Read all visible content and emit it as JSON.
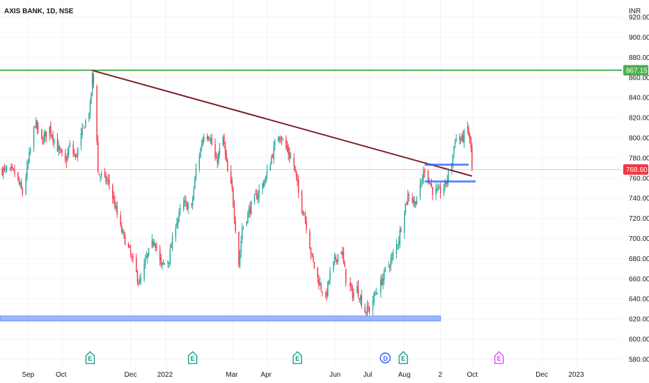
{
  "header": {
    "ticker": "AXIS BANK, 1D, NSE",
    "currency": "INR"
  },
  "price_tags": {
    "resistance": {
      "value": "867.15",
      "color": "#4caf50"
    },
    "last": {
      "value": "768.60",
      "color": "#f23645"
    }
  },
  "colors": {
    "up": "#26a69a",
    "down": "#f23645",
    "trendline": "#7b1d24",
    "support": "#2962ff",
    "grid": "#f0f3fa"
  },
  "events": [
    {
      "label": "E",
      "kind": "earnings",
      "date": "2021-10-26",
      "color": "#089981"
    },
    {
      "label": "E",
      "kind": "earnings",
      "date": "2022-01-25",
      "color": "#089981"
    },
    {
      "label": "E",
      "kind": "earnings",
      "date": "2022-04-28",
      "color": "#089981"
    },
    {
      "label": "D",
      "kind": "dividend",
      "date": "2022-07-15",
      "color": "#2962ff"
    },
    {
      "label": "E",
      "kind": "earnings",
      "date": "2022-07-31",
      "color": "#089981"
    },
    {
      "label": "E",
      "kind": "earnings",
      "date": "2022-10-24",
      "color": "#e040fb"
    }
  ],
  "chart_data": {
    "type": "candlestick",
    "title": "AXIS BANK, 1D, NSE",
    "y_axis": {
      "label": "INR",
      "ticks": [
        580,
        600,
        620,
        640,
        660,
        680,
        700,
        720,
        740,
        760,
        780,
        800,
        820,
        840,
        860,
        880,
        900,
        920
      ],
      "ylim": [
        573,
        937
      ]
    },
    "x_axis": {
      "ticks": [
        {
          "label": "Sep",
          "date": "2021-09-01"
        },
        {
          "label": "Oct",
          "date": "2021-10-01"
        },
        {
          "label": "Dec",
          "date": "2021-12-01"
        },
        {
          "label": "2022",
          "date": "2022-01-01"
        },
        {
          "label": "Mar",
          "date": "2022-03-01"
        },
        {
          "label": "Apr",
          "date": "2022-04-01"
        },
        {
          "label": "Jun",
          "date": "2022-06-01"
        },
        {
          "label": "Jul",
          "date": "2022-07-01"
        },
        {
          "label": "Aug",
          "date": "2022-08-01"
        },
        {
          "label": "2",
          "date": "2022-09-02"
        },
        {
          "label": "Oct",
          "date": "2022-10-01"
        },
        {
          "label": "Dec",
          "date": "2022-12-01"
        },
        {
          "label": "2023",
          "date": "2023-01-01"
        }
      ],
      "xlim": [
        "2021-08-07",
        "2023-02-10"
      ]
    },
    "last_price": 768.6,
    "path": [
      [
        "2021-08-09",
        768
      ],
      [
        "2021-08-20",
        765
      ],
      [
        "2021-08-27",
        745
      ],
      [
        "2021-09-01",
        775
      ],
      [
        "2021-09-07",
        815
      ],
      [
        "2021-09-13",
        797
      ],
      [
        "2021-09-20",
        810
      ],
      [
        "2021-09-27",
        790
      ],
      [
        "2021-10-04",
        775
      ],
      [
        "2021-10-08",
        792
      ],
      [
        "2021-10-13",
        780
      ],
      [
        "2021-10-20",
        810
      ],
      [
        "2021-10-26",
        830
      ],
      [
        "2021-10-28",
        862
      ],
      [
        "2021-10-31",
        835
      ],
      [
        "2021-11-02",
        765
      ],
      [
        "2021-11-12",
        755
      ],
      [
        "2021-11-22",
        710
      ],
      [
        "2021-11-29",
        690
      ],
      [
        "2021-12-06",
        665
      ],
      [
        "2021-12-09",
        655
      ],
      [
        "2021-12-15",
        680
      ],
      [
        "2021-12-22",
        700
      ],
      [
        "2021-12-28",
        672
      ],
      [
        "2022-01-04",
        680
      ],
      [
        "2022-01-10",
        715
      ],
      [
        "2022-01-17",
        735
      ],
      [
        "2022-01-24",
        730
      ],
      [
        "2022-01-28",
        768
      ],
      [
        "2022-02-04",
        805
      ],
      [
        "2022-02-09",
        802
      ],
      [
        "2022-02-15",
        775
      ],
      [
        "2022-02-21",
        800
      ],
      [
        "2022-02-25",
        765
      ],
      [
        "2022-03-01",
        748
      ],
      [
        "2022-03-07",
        675
      ],
      [
        "2022-03-10",
        710
      ],
      [
        "2022-03-17",
        730
      ],
      [
        "2022-03-24",
        745
      ],
      [
        "2022-03-31",
        760
      ],
      [
        "2022-04-06",
        785
      ],
      [
        "2022-04-12",
        805
      ],
      [
        "2022-04-18",
        790
      ],
      [
        "2022-04-25",
        772
      ],
      [
        "2022-04-29",
        745
      ],
      [
        "2022-05-05",
        720
      ],
      [
        "2022-05-11",
        680
      ],
      [
        "2022-05-16",
        660
      ],
      [
        "2022-05-23",
        640
      ],
      [
        "2022-05-27",
        665
      ],
      [
        "2022-06-01",
        680
      ],
      [
        "2022-06-06",
        690
      ],
      [
        "2022-06-10",
        660
      ],
      [
        "2022-06-16",
        645
      ],
      [
        "2022-06-20",
        650
      ],
      [
        "2022-06-27",
        628
      ],
      [
        "2022-07-01",
        630
      ],
      [
        "2022-07-06",
        645
      ],
      [
        "2022-07-11",
        655
      ],
      [
        "2022-07-15",
        668
      ],
      [
        "2022-07-21",
        680
      ],
      [
        "2022-07-27",
        700
      ],
      [
        "2022-08-01",
        730
      ],
      [
        "2022-08-05",
        745
      ],
      [
        "2022-08-10",
        735
      ],
      [
        "2022-08-15",
        750
      ],
      [
        "2022-08-19",
        770
      ],
      [
        "2022-08-22",
        760
      ],
      [
        "2022-08-26",
        748
      ],
      [
        "2022-08-31",
        745
      ],
      [
        "2022-09-06",
        752
      ],
      [
        "2022-09-12",
        775
      ],
      [
        "2022-09-15",
        800
      ],
      [
        "2022-09-21",
        798
      ],
      [
        "2022-09-26",
        810
      ],
      [
        "2022-09-29",
        790
      ],
      [
        "2022-09-30",
        768.6
      ]
    ],
    "annotations": [
      {
        "type": "horizontal_line",
        "value": 867.15,
        "color": "#4caf50"
      },
      {
        "type": "trendline",
        "from": [
          "2021-10-28",
          867
        ],
        "to": [
          "2022-09-30",
          762
        ],
        "color": "#7b1d24"
      },
      {
        "type": "support_zone",
        "from": "2021-08-07",
        "to": "2022-09-02",
        "range": [
          618,
          623
        ],
        "color": "#2962ff"
      },
      {
        "type": "zone_box",
        "from": "2022-08-19",
        "to": "2022-09-27",
        "range": [
          757,
          773
        ],
        "color": "#2962ff"
      },
      {
        "type": "horizontal_line",
        "value": 768.6,
        "color": "#f23645"
      }
    ]
  }
}
